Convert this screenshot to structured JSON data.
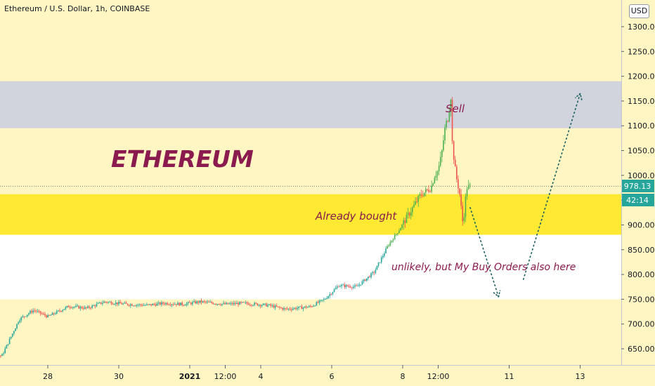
{
  "header": {
    "ticker": "Ethereum / U.S. Dollar, 1h, COINBASE",
    "currency_button": "USD"
  },
  "price_tags": {
    "last_price": "978.13",
    "countdown": "42:14"
  },
  "annotations": {
    "title": "ETHEREUM",
    "sell": "Sell",
    "bought": "Already bought",
    "buy_orders": "unlikely, but My Buy Orders also here"
  },
  "colors": {
    "up": "#26a69a",
    "up_bright": "#4caf50",
    "down": "#ef5350",
    "accent_text": "#8b1a4e",
    "sell_zone": "#d1d4dc",
    "bought_zone": "#ffe933",
    "buy_zone": "#ffffff",
    "background": "#fff6c3",
    "price_tag": "#26a69a"
  },
  "chart_data": {
    "type": "candlestick",
    "title": "Ethereum / U.S. Dollar, 1h, COINBASE",
    "y_unit": "USD",
    "ylim": [
      610,
      1375
    ],
    "y_ticks": [
      "650.00",
      "700.00",
      "750.00",
      "800.00",
      "850.00",
      "900.00",
      "950.00",
      "1000.00",
      "1050.00",
      "1100.00",
      "1150.00",
      "1200.00",
      "1250.00",
      "1300.00"
    ],
    "y_tick_values": [
      650,
      700,
      750,
      800,
      850,
      900,
      950,
      1000,
      1050,
      1100,
      1150,
      1200,
      1250,
      1300
    ],
    "x_ticks": [
      "28",
      "30",
      "2021",
      "12:00",
      "4",
      "6",
      "8",
      "12:00",
      "11",
      "13"
    ],
    "x_tick_values": [
      0,
      2,
      4,
      5,
      6,
      8,
      10,
      11,
      13,
      15
    ],
    "x_range": [
      -2.7,
      15.3
    ],
    "last_price": 978.13,
    "zones": [
      {
        "name": "sell",
        "from": 1095,
        "to": 1190
      },
      {
        "name": "already-bought",
        "from": 880,
        "to": 962
      },
      {
        "name": "buy-orders",
        "from": 750,
        "to": 880
      }
    ],
    "close_path": [
      [
        -2.7,
        640
      ],
      [
        -2.3,
        648
      ],
      [
        -1.7,
        645
      ],
      [
        -1.3,
        635
      ],
      [
        -0.8,
        710
      ],
      [
        -0.4,
        728
      ],
      [
        0,
        715
      ],
      [
        0.6,
        736
      ],
      [
        1.1,
        732
      ],
      [
        1.6,
        745
      ],
      [
        2.2,
        740
      ],
      [
        2.8,
        738
      ],
      [
        3.3,
        742
      ],
      [
        3.8,
        740
      ],
      [
        4.3,
        745
      ],
      [
        5,
        740
      ],
      [
        5.5,
        742
      ],
      [
        6.2,
        738
      ],
      [
        6.7,
        730
      ],
      [
        7.4,
        735
      ],
      [
        7.8,
        750
      ],
      [
        8.2,
        778
      ],
      [
        8.7,
        775
      ],
      [
        9.2,
        805
      ],
      [
        9.6,
        860
      ],
      [
        9.9,
        890
      ],
      [
        10.2,
        925
      ],
      [
        10.5,
        960
      ],
      [
        10.8,
        975
      ],
      [
        10.9,
        1000
      ],
      [
        11,
        1010
      ],
      [
        11.1,
        1045
      ],
      [
        11.2,
        1100
      ],
      [
        11.3,
        1120
      ],
      [
        11.35,
        1170
      ],
      [
        11.4,
        1060
      ],
      [
        11.5,
        1000
      ],
      [
        11.6,
        965
      ],
      [
        11.7,
        900
      ],
      [
        11.8,
        975
      ],
      [
        11.9,
        978
      ]
    ],
    "arrows": [
      {
        "name": "down-projection",
        "points": [
          [
            11.9,
            935
          ],
          [
            12.7,
            755
          ]
        ]
      },
      {
        "name": "up-projection",
        "points": [
          [
            13.4,
            790
          ],
          [
            15,
            1165
          ]
        ]
      }
    ]
  }
}
